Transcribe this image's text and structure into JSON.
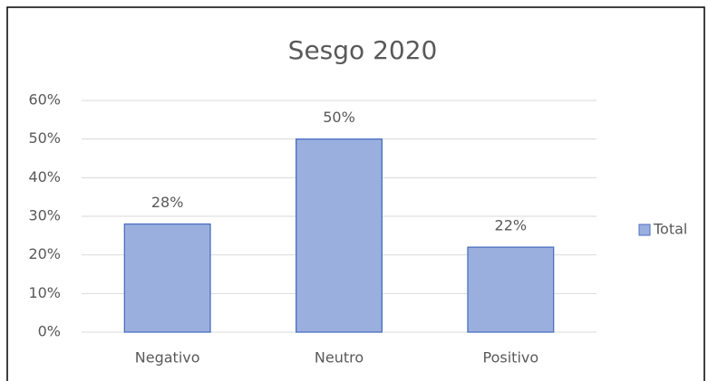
{
  "chart_data": {
    "type": "bar",
    "title": "Sesgo 2020",
    "categories": [
      "Negativo",
      "Neutro",
      "Positivo"
    ],
    "series": [
      {
        "name": "Total",
        "color": "#9bafdf",
        "values": [
          28,
          50,
          22
        ],
        "value_labels": [
          "28%",
          "50%",
          "22%"
        ]
      }
    ],
    "ylim": [
      0,
      60
    ],
    "yticks": [
      {
        "value": 0,
        "label": "0%"
      },
      {
        "value": 10,
        "label": "10%"
      },
      {
        "value": 20,
        "label": "20%"
      },
      {
        "value": 30,
        "label": "30%"
      },
      {
        "value": 40,
        "label": "40%"
      },
      {
        "value": 50,
        "label": "50%"
      },
      {
        "value": 60,
        "label": "60%"
      }
    ],
    "grid": true,
    "legend": "right"
  }
}
